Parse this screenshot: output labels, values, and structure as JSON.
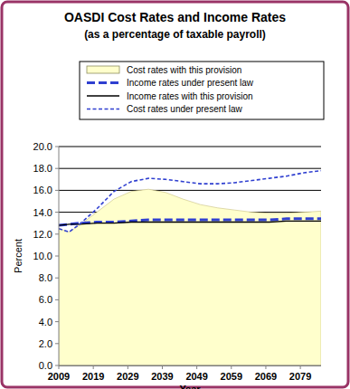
{
  "chart_data": {
    "type": "line",
    "title": "OASDI Cost Rates and Income Rates",
    "subtitle": "(as a percentage of taxable payroll)",
    "x_label": "Year",
    "y_label": "Percent",
    "x": [
      2009,
      2012,
      2015,
      2020,
      2025,
      2030,
      2035,
      2040,
      2045,
      2050,
      2055,
      2060,
      2065,
      2070,
      2075,
      2080,
      2085
    ],
    "series": [
      {
        "name": "Cost rates with this provision",
        "type": "area",
        "color": "#ffffcc",
        "values": [
          12.5,
          12.2,
          12.8,
          14.0,
          15.2,
          15.9,
          16.1,
          15.8,
          15.2,
          14.7,
          14.4,
          14.2,
          14.0,
          13.9,
          13.9,
          14.0,
          14.1
        ]
      },
      {
        "name": "Income rates under present law",
        "type": "line",
        "color": "#2f3fd0",
        "line_style": "dashed",
        "values": [
          12.8,
          12.9,
          13.0,
          13.1,
          13.1,
          13.2,
          13.3,
          13.3,
          13.3,
          13.3,
          13.3,
          13.3,
          13.3,
          13.3,
          13.4,
          13.4,
          13.4
        ]
      },
      {
        "name": "Income rates with this provision",
        "type": "line",
        "color": "#000000",
        "line_style": "solid",
        "values": [
          12.8,
          12.9,
          12.9,
          13.0,
          13.0,
          13.1,
          13.1,
          13.1,
          13.1,
          13.1,
          13.1,
          13.1,
          13.1,
          13.1,
          13.2,
          13.2,
          13.2
        ]
      },
      {
        "name": "Cost rates under present law",
        "type": "line",
        "color": "#2f3fd0",
        "line_style": "short-dashed",
        "values": [
          12.5,
          12.2,
          12.9,
          14.3,
          15.9,
          16.8,
          17.1,
          17.0,
          16.8,
          16.6,
          16.6,
          16.7,
          16.9,
          17.1,
          17.3,
          17.6,
          17.8
        ]
      }
    ],
    "xlim": [
      2009,
      2085
    ],
    "xticks": [
      2009,
      2019,
      2029,
      2039,
      2049,
      2059,
      2069,
      2079
    ],
    "ylim": [
      0,
      20
    ],
    "yticks": [
      {
        "value": 0,
        "label": "0.0"
      },
      {
        "value": 2,
        "label": "2.0"
      },
      {
        "value": 4,
        "label": "4.0"
      },
      {
        "value": 6,
        "label": "6.0"
      },
      {
        "value": 8,
        "label": "8.0"
      },
      {
        "value": 10,
        "label": "10.0"
      },
      {
        "value": 12,
        "label": "12.0"
      },
      {
        "value": 14,
        "label": "14.0"
      },
      {
        "value": 16,
        "label": "16.0"
      },
      {
        "value": 18,
        "label": "18.0"
      },
      {
        "value": 20,
        "label": "20.0"
      }
    ],
    "grid": true,
    "legend": "top"
  }
}
